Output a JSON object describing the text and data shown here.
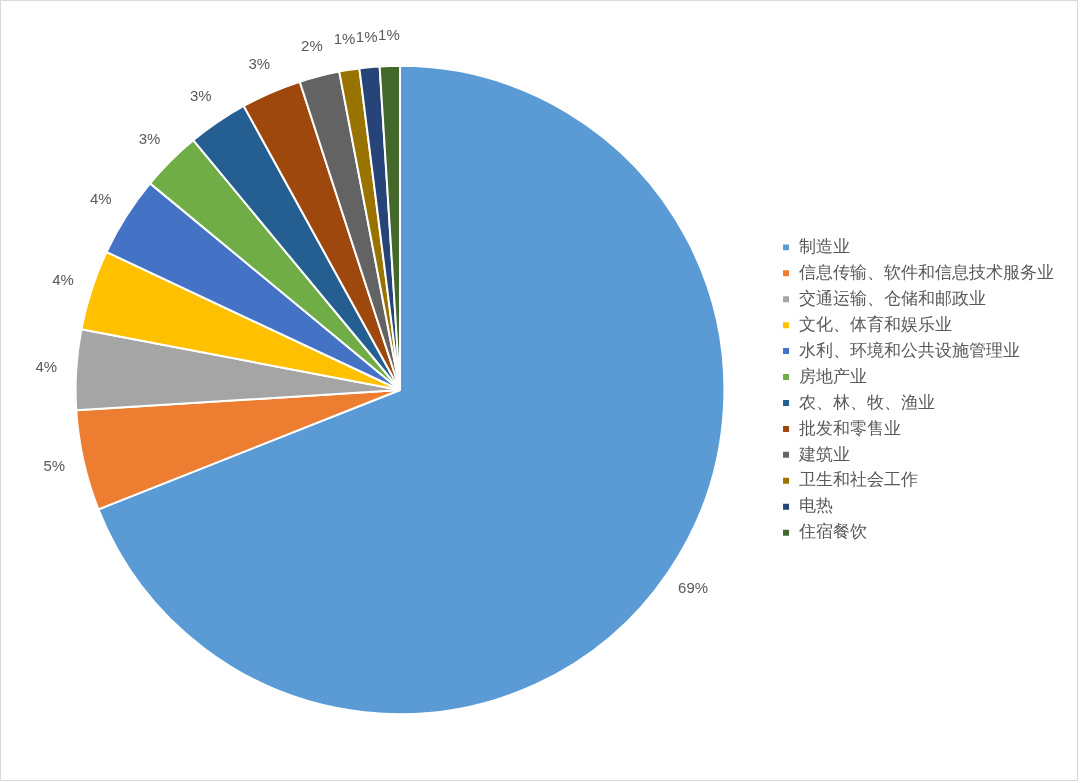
{
  "chart_data": {
    "type": "pie",
    "categories": [
      "制造业",
      "信息传输、软件和信息技术服务业",
      "交通运输、仓储和邮政业",
      "文化、体育和娱乐业",
      "水利、环境和公共设施管理业",
      "房地产业",
      "农、林、牧、渔业",
      "批发和零售业",
      "建筑业",
      "卫生和社会工作",
      "电热",
      "住宿餐饮"
    ],
    "values": [
      69,
      5,
      4,
      4,
      4,
      3,
      3,
      3,
      2,
      1,
      1,
      1
    ],
    "colors": [
      "#5b9bd5",
      "#ed7d31",
      "#a5a5a5",
      "#ffc000",
      "#4472c4",
      "#70ad47",
      "#255e91",
      "#9e480e",
      "#636363",
      "#997300",
      "#264478",
      "#43682b"
    ],
    "value_labels": [
      "69%",
      "5%",
      "4%",
      "4%",
      "4%",
      "3%",
      "3%",
      "3%",
      "2%",
      "1%",
      "1%",
      "1%"
    ],
    "legend": "right"
  }
}
